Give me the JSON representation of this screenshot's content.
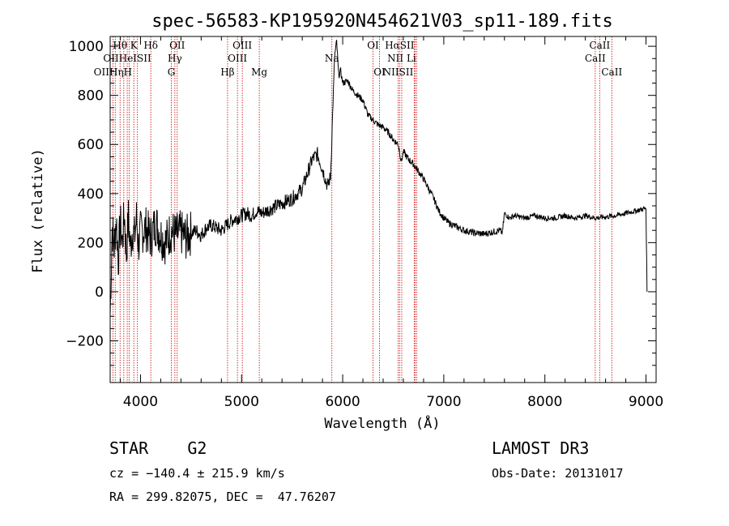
{
  "chart_data": {
    "type": "line",
    "title": "spec-56583-KP195920N454621V03_sp11-189.fits",
    "xlabel": "Wavelength (Å)",
    "ylabel": "Flux (relative)",
    "xlim": [
      3700,
      9100
    ],
    "ylim": [
      -370,
      1040
    ],
    "xticks": [
      4000,
      5000,
      6000,
      7000,
      8000,
      9000
    ],
    "yticks": [
      -200,
      0,
      200,
      400,
      600,
      800,
      1000
    ],
    "xtick_labels": [
      "4000",
      "5000",
      "6000",
      "7000",
      "8000",
      "9000"
    ],
    "ytick_labels": [
      "−200",
      "0",
      "200",
      "400",
      "600",
      "800",
      "1000"
    ],
    "series": [
      {
        "name": "flux",
        "color": "#000000",
        "x": [
          3700,
          3720,
          3740,
          3760,
          3780,
          3800,
          3820,
          3840,
          3860,
          3880,
          3900,
          3920,
          3940,
          3960,
          3980,
          4000,
          4050,
          4100,
          4150,
          4200,
          4250,
          4300,
          4350,
          4400,
          4450,
          4500,
          4550,
          4600,
          4650,
          4700,
          4750,
          4800,
          4850,
          4900,
          4950,
          5000,
          5050,
          5100,
          5150,
          5200,
          5300,
          5400,
          5500,
          5600,
          5650,
          5700,
          5750,
          5800,
          5850,
          5880,
          5900,
          5920,
          5940,
          5960,
          5980,
          6000,
          6050,
          6100,
          6150,
          6200,
          6250,
          6300,
          6350,
          6400,
          6450,
          6500,
          6550,
          6580,
          6600,
          6650,
          6700,
          6750,
          6800,
          6850,
          6900,
          6950,
          7000,
          7050,
          7100,
          7150,
          7200,
          7300,
          7400,
          7500,
          7550,
          7580,
          7600,
          7650,
          7700,
          7800,
          7900,
          8000,
          8100,
          8200,
          8300,
          8400,
          8500,
          8600,
          8700,
          8800,
          8900,
          9000,
          9010
        ],
        "y": [
          -100,
          260,
          180,
          300,
          130,
          280,
          200,
          320,
          150,
          300,
          180,
          260,
          220,
          300,
          190,
          240,
          260,
          220,
          280,
          230,
          200,
          250,
          230,
          240,
          220,
          240,
          250,
          230,
          260,
          270,
          260,
          250,
          270,
          290,
          300,
          310,
          320,
          310,
          330,
          320,
          340,
          360,
          380,
          420,
          480,
          540,
          560,
          500,
          430,
          470,
          720,
          960,
          1020,
          880,
          900,
          850,
          860,
          820,
          800,
          780,
          720,
          700,
          680,
          670,
          650,
          620,
          600,
          530,
          570,
          540,
          520,
          490,
          460,
          420,
          380,
          330,
          300,
          280,
          270,
          260,
          250,
          240,
          235,
          245,
          250,
          240,
          320,
          300,
          310,
          300,
          310,
          300,
          300,
          310,
          300,
          310,
          300,
          305,
          310,
          320,
          330,
          340,
          0
        ]
      }
    ],
    "emission_lines": [
      {
        "label": "Hθ",
        "wavelength": 3798,
        "row": 0
      },
      {
        "label": "K",
        "wavelength": 3934,
        "row": 0
      },
      {
        "label": "Hδ",
        "wavelength": 4102,
        "row": 0
      },
      {
        "label": "OII",
        "wavelength": 4363,
        "row": 0
      },
      {
        "label": "OIII",
        "wavelength": 5007,
        "row": 0
      },
      {
        "label": "OI",
        "wavelength": 6300,
        "row": 0
      },
      {
        "label": "HαSII",
        "wavelength": 6563,
        "row": 0
      },
      {
        "label": "CaII",
        "wavelength": 8542,
        "row": 0
      },
      {
        "label": "OIIHeISII",
        "wavelength": 3869,
        "row": 1
      },
      {
        "label": "Hγ",
        "wavelength": 4340,
        "row": 1
      },
      {
        "label": "OIII",
        "wavelength": 4959,
        "row": 1
      },
      {
        "label": "Na",
        "wavelength": 5893,
        "row": 1
      },
      {
        "label": "NII Li",
        "wavelength": 6584,
        "row": 1
      },
      {
        "label": "CaII",
        "wavelength": 8498,
        "row": 1
      },
      {
        "label": "OIIHηH",
        "wavelength": 3727,
        "row": 2
      },
      {
        "label": "G",
        "wavelength": 4305,
        "row": 2
      },
      {
        "label": "Hβ",
        "wavelength": 4861,
        "row": 2
      },
      {
        "label": "Mg",
        "wavelength": 5175,
        "row": 2
      },
      {
        "label": "OI",
        "wavelength": 6364,
        "row": 2
      },
      {
        "label": "NIISII",
        "wavelength": 6548,
        "row": 2
      },
      {
        "label": "CaII",
        "wavelength": 8662,
        "row": 2
      }
    ],
    "marker_lines": [
      3727,
      3750,
      3798,
      3835,
      3869,
      3889,
      3934,
      3970,
      4102,
      4305,
      4340,
      4363,
      4861,
      4959,
      5007,
      5175,
      5893,
      6300,
      6364,
      6548,
      6563,
      6584,
      6707,
      6717,
      6731,
      8498,
      8542,
      8662
    ],
    "line_color": "#cc0000"
  },
  "info": {
    "object_class": "STAR",
    "subclass": "G2",
    "survey": "LAMOST DR3",
    "redshift": "cz = −140.4 ± 215.9 km/s",
    "obs_date": "Obs-Date: 20131017",
    "coords": "RA = 299.82075, DEC =  47.76207"
  }
}
